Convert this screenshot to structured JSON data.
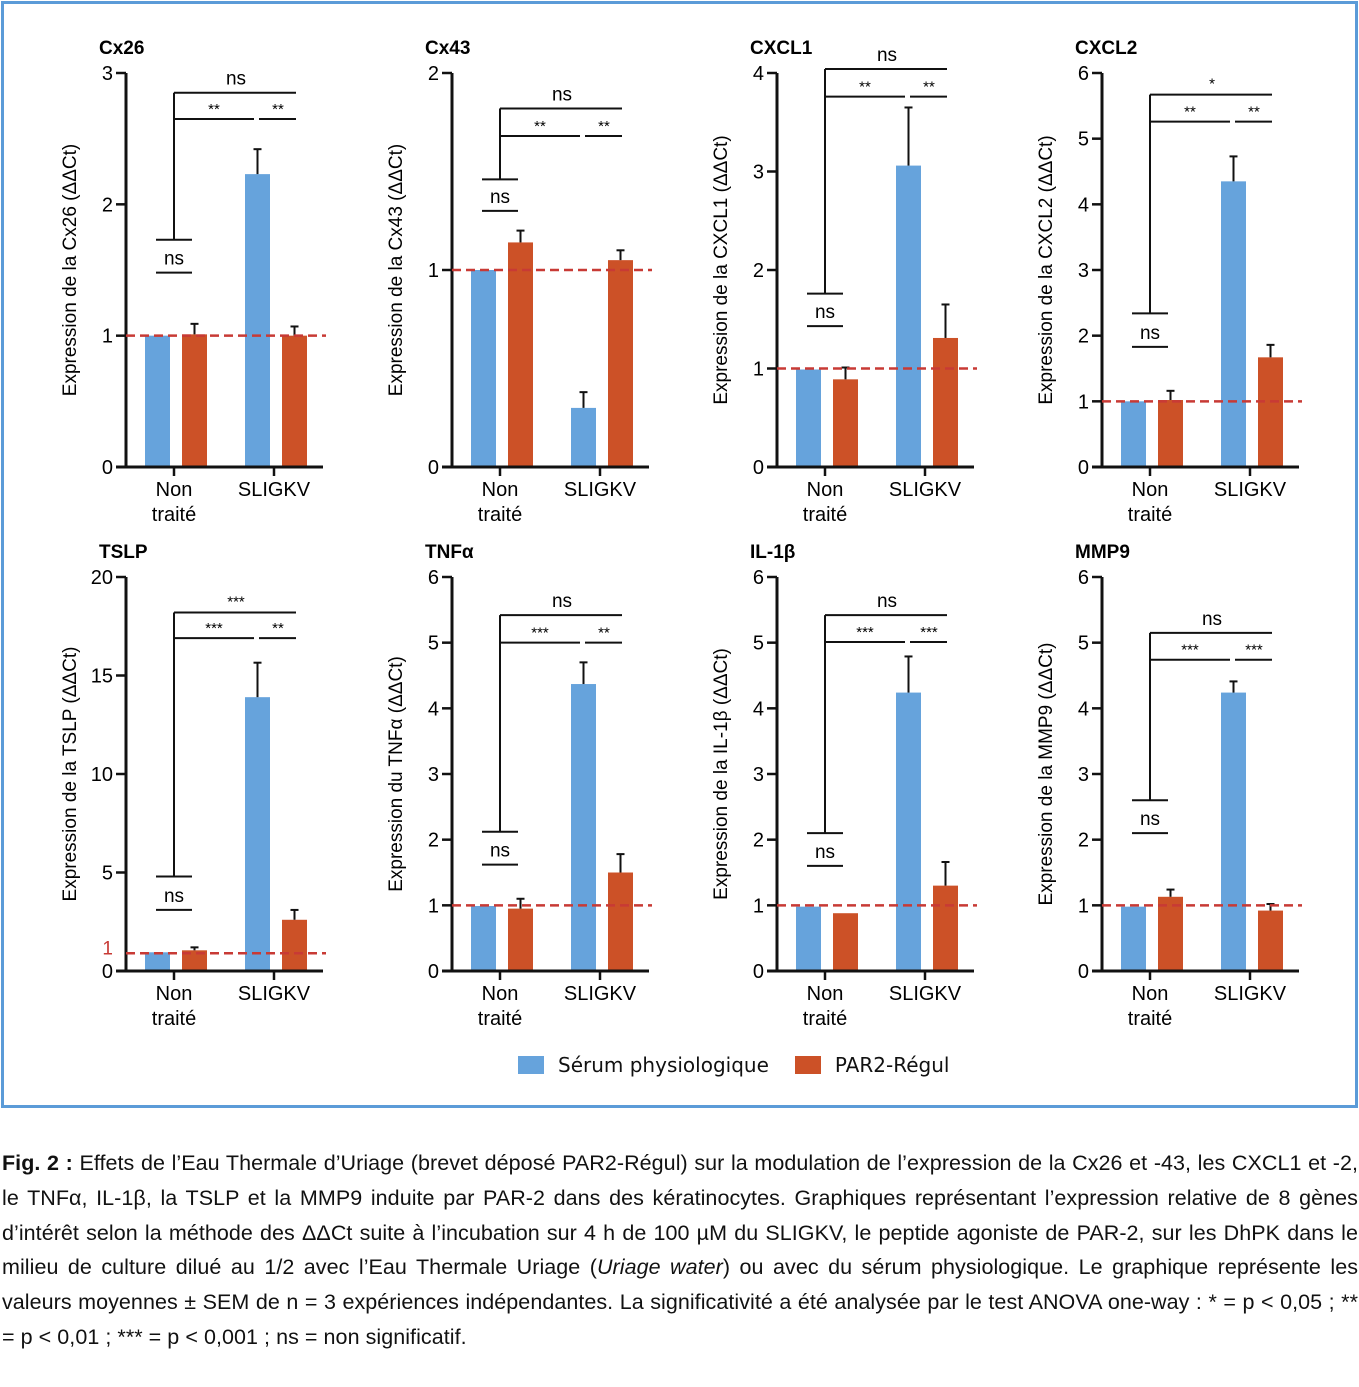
{
  "figure": {
    "colors": {
      "serum": "#66a3dc",
      "par2": "#cc5127",
      "reference": "#c83a35",
      "frame": "#5b9bd8",
      "axis": "#111111"
    },
    "legend": [
      {
        "label": "Sérum physiologique",
        "series": "serum"
      },
      {
        "label": "PAR2-Régul",
        "series": "par2"
      }
    ],
    "caption": {
      "label": "Fig. 2 :",
      "part1": " Effets de l’Eau Thermale d’Uriage (brevet déposé PAR2-Régul) sur la modulation de l’expression de la Cx26 et -43, les CXCL1 et -2, le TNFα, IL-1β, la TSLP et la MMP9 induite par PAR-2 dans des kératinocytes. Graphiques représentant l’expression relative de 8 gènes d’intérêt selon la méthode des ΔΔCt suite à l’incubation sur 4 h de 100 µM du SLIGKV, le peptide agoniste de PAR-2, sur les DhPK dans le milieu de culture dilué au 1/2 avec l’Eau Thermale Uriage (",
      "italic": "Uriage water",
      "part2": ") ou avec du sérum physiologique. Le graphique représente les valeurs moyennes ± SEM de n = 3 expériences indépendantes. La significativité a été analysée par le test ANOVA one-way : * = p < 0,05 ; ** = p < 0,01 ; *** = p < 0,001 ; ns = non significatif."
    }
  },
  "chart_data": [
    {
      "type": "bar",
      "title": "Cx26",
      "ylabel": "Expression de la Cx26 (ΔΔCt)",
      "categories": [
        "Non traité",
        "SLIGKV"
      ],
      "ylim": [
        0,
        3
      ],
      "yticks": [
        0,
        1,
        2,
        3
      ],
      "reference_line": 1,
      "reference_label": null,
      "series": [
        {
          "name": "Sérum physiologique",
          "values": [
            1.0,
            2.23
          ],
          "errors": [
            0,
            0.19
          ]
        },
        {
          "name": "PAR2-Régul",
          "values": [
            1.01,
            1.0
          ],
          "errors": [
            0.08,
            0.07
          ]
        }
      ],
      "significance": {
        "nt_pair": "ns",
        "nt_bracket_y": 1.73,
        "nt_label_y": 1.48,
        "top": "ns",
        "top_y": 2.85,
        "left": "**",
        "right": "**",
        "mid_y": 2.65
      }
    },
    {
      "type": "bar",
      "title": "Cx43",
      "ylabel": "Expression de la Cx43 (ΔΔCt)",
      "categories": [
        "Non traité",
        "SLIGKV"
      ],
      "ylim": [
        0,
        2
      ],
      "yticks": [
        0,
        1,
        2
      ],
      "reference_line": 1,
      "reference_label": null,
      "series": [
        {
          "name": "Sérum physiologique",
          "values": [
            1.0,
            0.3
          ],
          "errors": [
            0,
            0.08
          ]
        },
        {
          "name": "PAR2-Régul",
          "values": [
            1.14,
            1.05
          ],
          "errors": [
            0.06,
            0.05
          ]
        }
      ],
      "significance": {
        "nt_pair": "ns",
        "nt_bracket_y": 1.46,
        "nt_label_y": 1.3,
        "top": "ns",
        "top_y": 1.82,
        "left": "**",
        "right": "**",
        "mid_y": 1.68
      }
    },
    {
      "type": "bar",
      "title": "CXCL1",
      "ylabel": "Expression de la CXCL1 (ΔΔCt)",
      "categories": [
        "Non traité",
        "SLIGKV"
      ],
      "ylim": [
        0,
        4
      ],
      "yticks": [
        0,
        1,
        2,
        3,
        4
      ],
      "reference_line": 1,
      "reference_label": null,
      "series": [
        {
          "name": "Sérum physiologique",
          "values": [
            0.99,
            3.06
          ],
          "errors": [
            0,
            0.59
          ]
        },
        {
          "name": "PAR2-Régul",
          "values": [
            0.89,
            1.31
          ],
          "errors": [
            0.12,
            0.34
          ]
        }
      ],
      "significance": {
        "nt_pair": "ns",
        "nt_bracket_y": 1.76,
        "nt_label_y": 1.43,
        "top": "ns",
        "top_y": 4.04,
        "left": "**",
        "right": "**",
        "mid_y": 3.76
      }
    },
    {
      "type": "bar",
      "title": "CXCL2",
      "ylabel": "Expression de la CXCL2 (ΔΔCt)",
      "categories": [
        "Non traité",
        "SLIGKV"
      ],
      "ylim": [
        0,
        6
      ],
      "yticks": [
        0,
        1,
        2,
        3,
        4,
        5,
        6
      ],
      "reference_line": 1,
      "reference_label": null,
      "series": [
        {
          "name": "Sérum physiologique",
          "values": [
            1.0,
            4.35
          ],
          "errors": [
            0,
            0.38
          ]
        },
        {
          "name": "PAR2-Régul",
          "values": [
            1.02,
            1.67
          ],
          "errors": [
            0.14,
            0.19
          ]
        }
      ],
      "significance": {
        "nt_pair": "ns",
        "nt_bracket_y": 2.34,
        "nt_label_y": 1.83,
        "top": "*",
        "top_y": 5.67,
        "left": "**",
        "right": "**",
        "mid_y": 5.26
      }
    },
    {
      "type": "bar",
      "title": "TSLP",
      "ylabel": "Expression de la TSLP (ΔΔCt)",
      "categories": [
        "Non traité",
        "SLIGKV"
      ],
      "ylim": [
        0,
        20
      ],
      "yticks": [
        0,
        5,
        10,
        15,
        20
      ],
      "reference_line": 0.9,
      "reference_label": "1",
      "series": [
        {
          "name": "Sérum physiologique",
          "values": [
            0.95,
            13.9
          ],
          "errors": [
            0,
            1.75
          ]
        },
        {
          "name": "PAR2-Régul",
          "values": [
            1.05,
            2.6
          ],
          "errors": [
            0.15,
            0.5
          ]
        }
      ],
      "significance": {
        "nt_pair": "ns",
        "nt_bracket_y": 4.8,
        "nt_label_y": 3.1,
        "top": "***",
        "top_y": 18.2,
        "left": "***",
        "right": "**",
        "mid_y": 16.9
      }
    },
    {
      "type": "bar",
      "title": "TNFα",
      "ylabel": "Expression du TNFα (ΔΔCt)",
      "categories": [
        "Non traité",
        "SLIGKV"
      ],
      "ylim": [
        0,
        6
      ],
      "yticks": [
        0,
        1,
        2,
        3,
        4,
        5,
        6
      ],
      "reference_line": 1,
      "reference_label": null,
      "series": [
        {
          "name": "Sérum physiologique",
          "values": [
            0.99,
            4.37
          ],
          "errors": [
            0,
            0.33
          ]
        },
        {
          "name": "PAR2-Régul",
          "values": [
            0.95,
            1.5
          ],
          "errors": [
            0.15,
            0.28
          ]
        }
      ],
      "significance": {
        "nt_pair": "ns",
        "nt_bracket_y": 2.12,
        "nt_label_y": 1.62,
        "top": "ns",
        "top_y": 5.42,
        "left": "***",
        "right": "**",
        "mid_y": 5.0
      }
    },
    {
      "type": "bar",
      "title": "IL-1β",
      "ylabel": "Expression de la IL-1β (ΔΔCt)",
      "categories": [
        "Non traité",
        "SLIGKV"
      ],
      "ylim": [
        0,
        6
      ],
      "yticks": [
        0,
        1,
        2,
        3,
        4,
        5,
        6
      ],
      "reference_line": 1,
      "reference_label": null,
      "series": [
        {
          "name": "Sérum physiologique",
          "values": [
            0.98,
            4.24
          ],
          "errors": [
            0,
            0.55
          ]
        },
        {
          "name": "PAR2-Régul",
          "values": [
            0.88,
            1.3
          ],
          "errors": [
            0,
            0.36
          ]
        }
      ],
      "significance": {
        "nt_pair": "ns",
        "nt_bracket_y": 2.1,
        "nt_label_y": 1.6,
        "top": "ns",
        "top_y": 5.42,
        "left": "***",
        "right": "***",
        "mid_y": 5.01
      }
    },
    {
      "type": "bar",
      "title": "MMP9",
      "ylabel": "Expression de la MMP9 (ΔΔCt)",
      "categories": [
        "Non traité",
        "SLIGKV"
      ],
      "ylim": [
        0,
        6
      ],
      "yticks": [
        0,
        1,
        2,
        3,
        4,
        5,
        6
      ],
      "reference_line": 1,
      "reference_label": null,
      "series": [
        {
          "name": "Sérum physiologique",
          "values": [
            0.98,
            4.24
          ],
          "errors": [
            0,
            0.17
          ]
        },
        {
          "name": "PAR2-Régul",
          "values": [
            1.13,
            0.92
          ],
          "errors": [
            0.11,
            0.1
          ]
        }
      ],
      "significance": {
        "nt_pair": "ns",
        "nt_bracket_y": 2.6,
        "nt_label_y": 2.1,
        "top": "ns",
        "top_y": 5.15,
        "left": "***",
        "right": "***",
        "mid_y": 4.74
      }
    }
  ]
}
